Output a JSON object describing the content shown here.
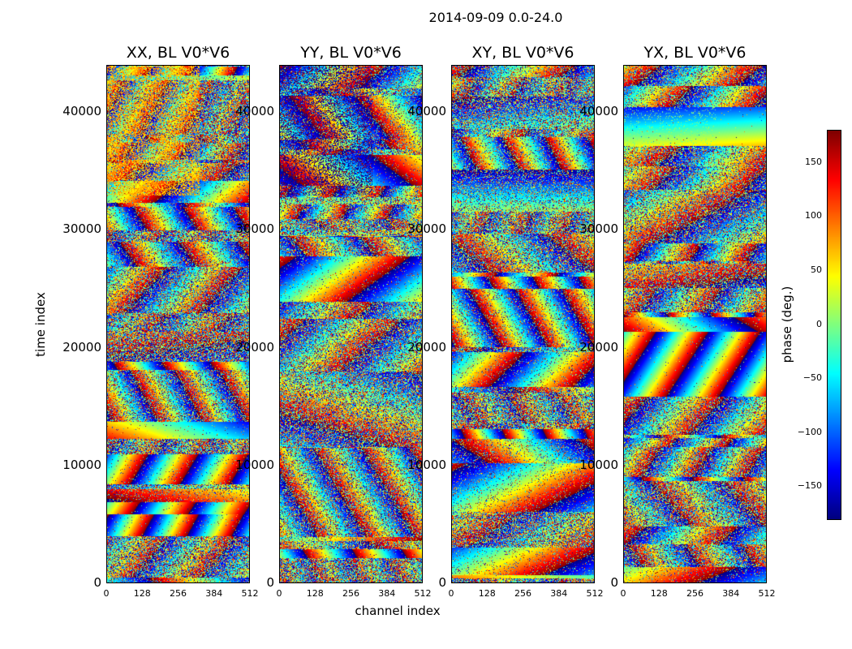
{
  "chart_data": {
    "type": "heatmap",
    "suptitle": "2014-09-09 0.0-24.0",
    "xlabel": "channel index",
    "ylabel": "time index",
    "colorbar_label": "phase (deg.)",
    "colormap": "jet",
    "xlim": [
      0,
      512
    ],
    "ylim": [
      0,
      44000
    ],
    "clim": [
      -180,
      180
    ],
    "xticks": [
      "0",
      "128",
      "256",
      "384",
      "512"
    ],
    "yticks": [
      "0",
      "10000",
      "20000",
      "30000",
      "40000"
    ],
    "yticks_values": [
      0,
      10000,
      20000,
      30000,
      40000
    ],
    "colorbar_ticks": [
      "150",
      "100",
      "50",
      "0",
      "−50",
      "−100",
      "−150"
    ],
    "colorbar_ticks_values": [
      150,
      100,
      50,
      0,
      -50,
      -100,
      -150
    ],
    "panels": [
      {
        "title": "XX, BL V0*V6",
        "bias_phase": 70,
        "bias_strength": 0.55
      },
      {
        "title": "YY, BL V0*V6",
        "bias_phase": -170,
        "bias_strength": 0.45
      },
      {
        "title": "XY, BL V0*V6",
        "bias_phase": 0,
        "bias_strength": 0.1
      },
      {
        "title": "YX, BL V0*V6",
        "bias_phase": 0,
        "bias_strength": 0.1
      }
    ]
  }
}
